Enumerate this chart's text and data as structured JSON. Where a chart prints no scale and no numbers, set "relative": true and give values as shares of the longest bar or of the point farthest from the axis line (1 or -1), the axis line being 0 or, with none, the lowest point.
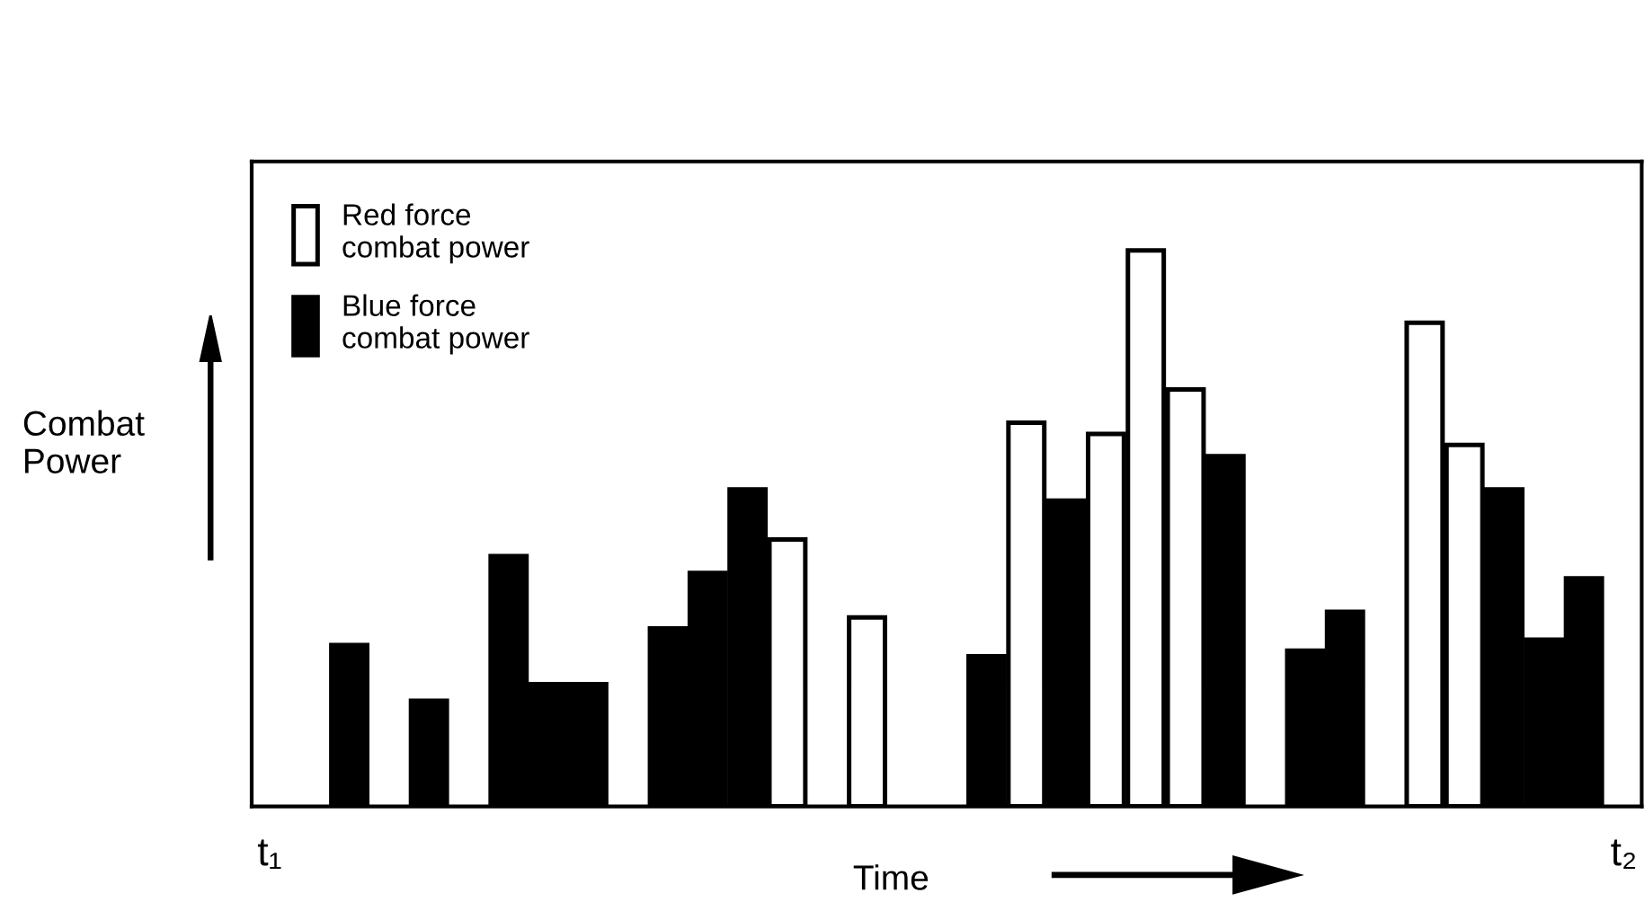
{
  "chart_data": {
    "type": "bar",
    "relative": true,
    "xlabel": "Time",
    "ylabel": "Combat\nPower",
    "categories": [
      "t₁",
      null,
      null,
      null,
      null,
      null,
      null,
      null,
      null,
      null,
      null,
      null,
      null,
      null,
      null,
      null,
      null,
      null,
      null,
      null,
      null,
      null,
      null,
      null,
      null,
      null,
      null,
      null,
      null,
      null,
      null,
      null,
      null,
      null,
      "t₂"
    ],
    "legend": "top left",
    "series": [
      {
        "name": "Red force\ncombat power",
        "color": "#ffffff",
        "values": [
          null,
          null,
          null,
          null,
          null,
          null,
          null,
          null,
          null,
          null,
          null,
          null,
          null,
          0.48,
          null,
          0.34,
          null,
          null,
          null,
          0.69,
          null,
          0.67,
          1,
          0.75,
          null,
          null,
          null,
          null,
          null,
          0.87,
          0.65,
          null,
          null,
          null,
          null
        ]
      },
      {
        "name": "Blue force\ncombat power",
        "color": "#000000",
        "values": [
          null,
          null,
          0.29,
          null,
          0.19,
          null,
          0.45,
          0.22,
          0.22,
          null,
          0.32,
          0.42,
          0.57,
          null,
          null,
          null,
          null,
          null,
          0.27,
          null,
          0.55,
          null,
          null,
          null,
          0.63,
          null,
          0.28,
          0.35,
          null,
          null,
          null,
          0.57,
          0.3,
          0.41,
          null
        ]
      }
    ]
  }
}
